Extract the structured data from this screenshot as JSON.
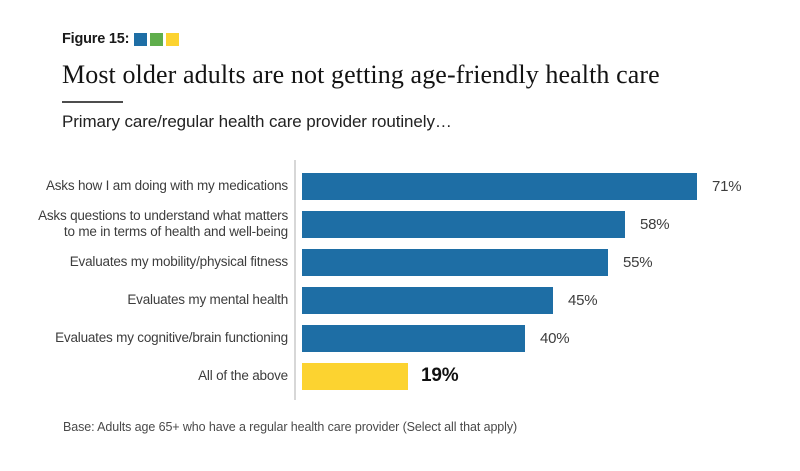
{
  "figure_label": "Figure 15:",
  "legend_colors": {
    "blue": "#1e6ea5",
    "green": "#5fae4c",
    "yellow": "#fcd330"
  },
  "title": "Most older adults are not getting age-friendly health care",
  "subtitle": "Primary care/regular health care provider routinely…",
  "base_note": "Base: Adults age 65+ who have a regular health care provider (Select all that apply)",
  "chart_data": {
    "type": "bar",
    "orientation": "horizontal",
    "title": "Most older adults are not getting age-friendly health care",
    "subtitle": "Primary care/regular health care provider routinely…",
    "xlabel": "",
    "ylabel": "",
    "xlim": [
      0,
      100
    ],
    "grid": false,
    "legend_position": "none",
    "value_suffix": "%",
    "categories": [
      "Asks how I am doing with my medications",
      "Asks questions to understand what matters\nto me in terms of health and well-being",
      "Evaluates my mobility/physical fitness",
      "Evaluates my mental health",
      "Evaluates my cognitive/brain functioning",
      "All of the above"
    ],
    "values": [
      71,
      58,
      55,
      45,
      40,
      19
    ],
    "value_labels": [
      "71%",
      "58%",
      "55%",
      "45%",
      "40%",
      "19%"
    ],
    "bar_colors": [
      "#1e6ea5",
      "#1e6ea5",
      "#1e6ea5",
      "#1e6ea5",
      "#1e6ea5",
      "#fcd330"
    ],
    "emphasized_index": 5
  }
}
